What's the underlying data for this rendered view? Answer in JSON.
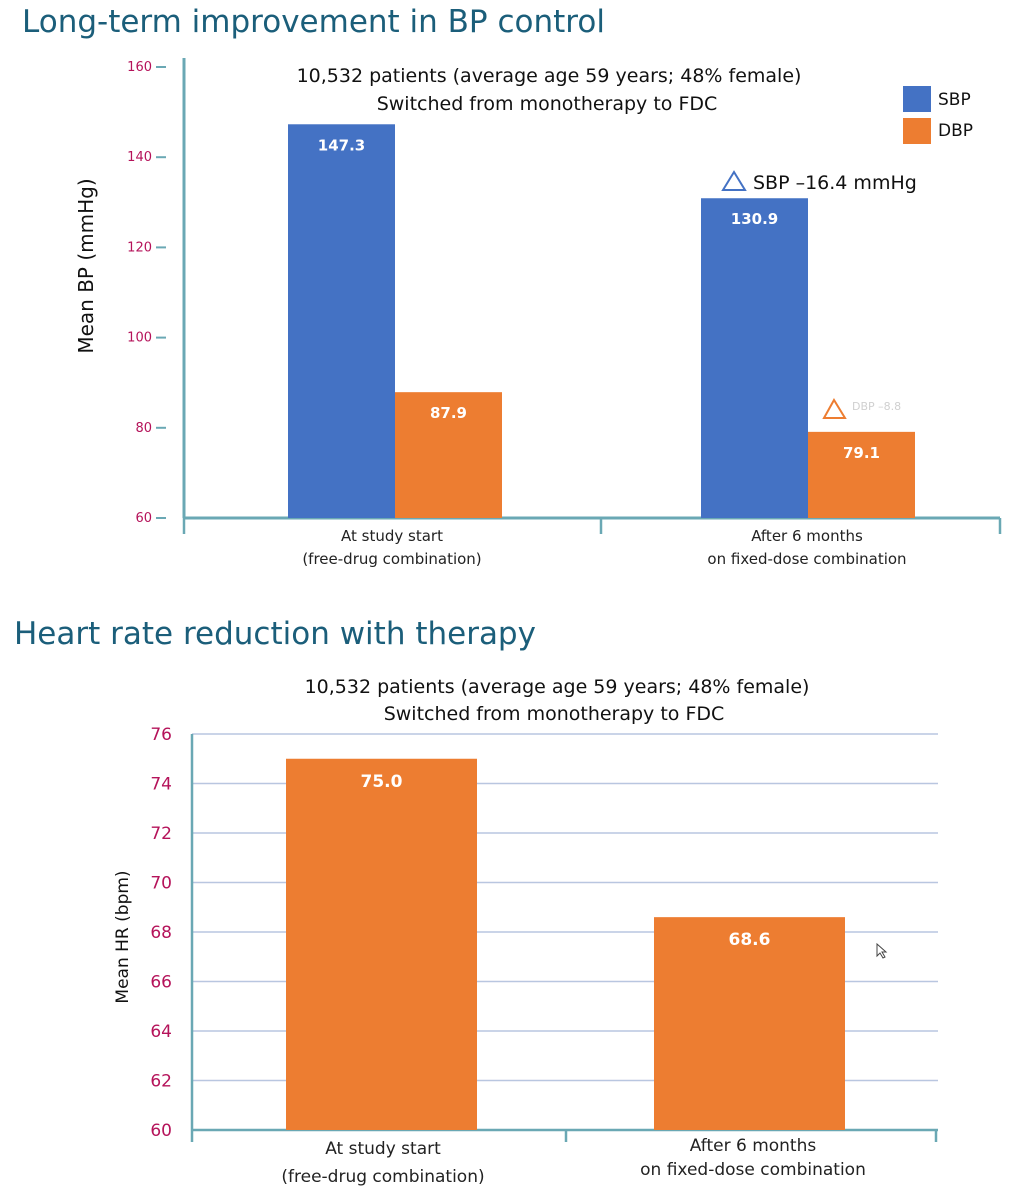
{
  "page": {
    "title_top": "Long-term improvement in BP control",
    "title_bottom": "Heart rate reduction with therapy"
  },
  "colors": {
    "title": "#1b5e7a",
    "sbp": "#4472c4",
    "dbp": "#ed7d31",
    "axis": "#6aa8b4",
    "tick_label": "#b5135a",
    "grid": "#b9c6e0"
  },
  "chart_data": [
    {
      "type": "bar",
      "subtitle": [
        "10,532 patients (average age 59 years; 48% female)",
        "Switched from monotherapy to FDC"
      ],
      "ylabel": "Mean BP (mmHg)",
      "ylim": [
        60,
        160
      ],
      "yticks": [
        60,
        80,
        100,
        120,
        140,
        160
      ],
      "categories": [
        [
          "At study start",
          "(free-drug combination)"
        ],
        [
          "After 6 months",
          "on fixed-dose combination"
        ]
      ],
      "series": [
        {
          "name": "SBP",
          "values": [
            147.3,
            130.9
          ],
          "labels": [
            "147.3",
            "130.9"
          ],
          "color": "#4472c4"
        },
        {
          "name": "DBP",
          "values": [
            87.9,
            79.1
          ],
          "labels": [
            "87.9",
            "79.1"
          ],
          "color": "#ed7d31"
        }
      ],
      "legend": "top-right",
      "grid": false,
      "annotations": [
        {
          "text": "SBP –16.4 mmHg",
          "series": "SBP",
          "category": 1
        },
        {
          "text": "DBP –8.8",
          "series": "DBP",
          "category": 1
        }
      ]
    },
    {
      "type": "bar",
      "subtitle": [
        "10,532 patients (average age 59 years; 48% female)",
        "Switched from monotherapy to FDC"
      ],
      "ylabel": "Mean HR (bpm)",
      "ylim": [
        60,
        76
      ],
      "yticks": [
        60,
        62,
        64,
        66,
        68,
        70,
        72,
        74,
        76
      ],
      "categories": [
        [
          "At study start",
          "(free-drug combination)"
        ],
        [
          "After 6 months",
          "on fixed-dose combination"
        ]
      ],
      "series": [
        {
          "values": [
            75.0,
            68.6
          ],
          "labels": [
            "75.0",
            "68.6"
          ],
          "color": "#ed7d31"
        }
      ],
      "grid": true
    }
  ]
}
